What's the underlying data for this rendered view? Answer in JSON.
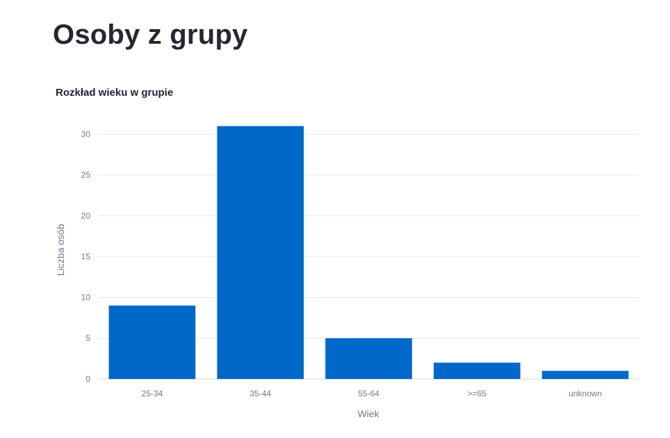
{
  "page": {
    "title": "Osoby z grupy"
  },
  "chart_data": {
    "type": "bar",
    "title": "Rozkład wieku w grupie",
    "xlabel": "Wiek",
    "ylabel": "Liczba osób",
    "categories": [
      "25-34",
      "35-44",
      "55-64",
      ">=65",
      "unknown"
    ],
    "values": [
      9,
      31,
      5,
      2,
      1
    ],
    "ylim": [
      0,
      32.5
    ],
    "yticks": [
      0,
      5,
      10,
      15,
      20,
      25,
      30
    ],
    "grid": true,
    "legend": "none",
    "colors": {
      "bar": "#0068c9",
      "grid": "#e6e8ec",
      "axis": "#d5d8dd"
    }
  }
}
